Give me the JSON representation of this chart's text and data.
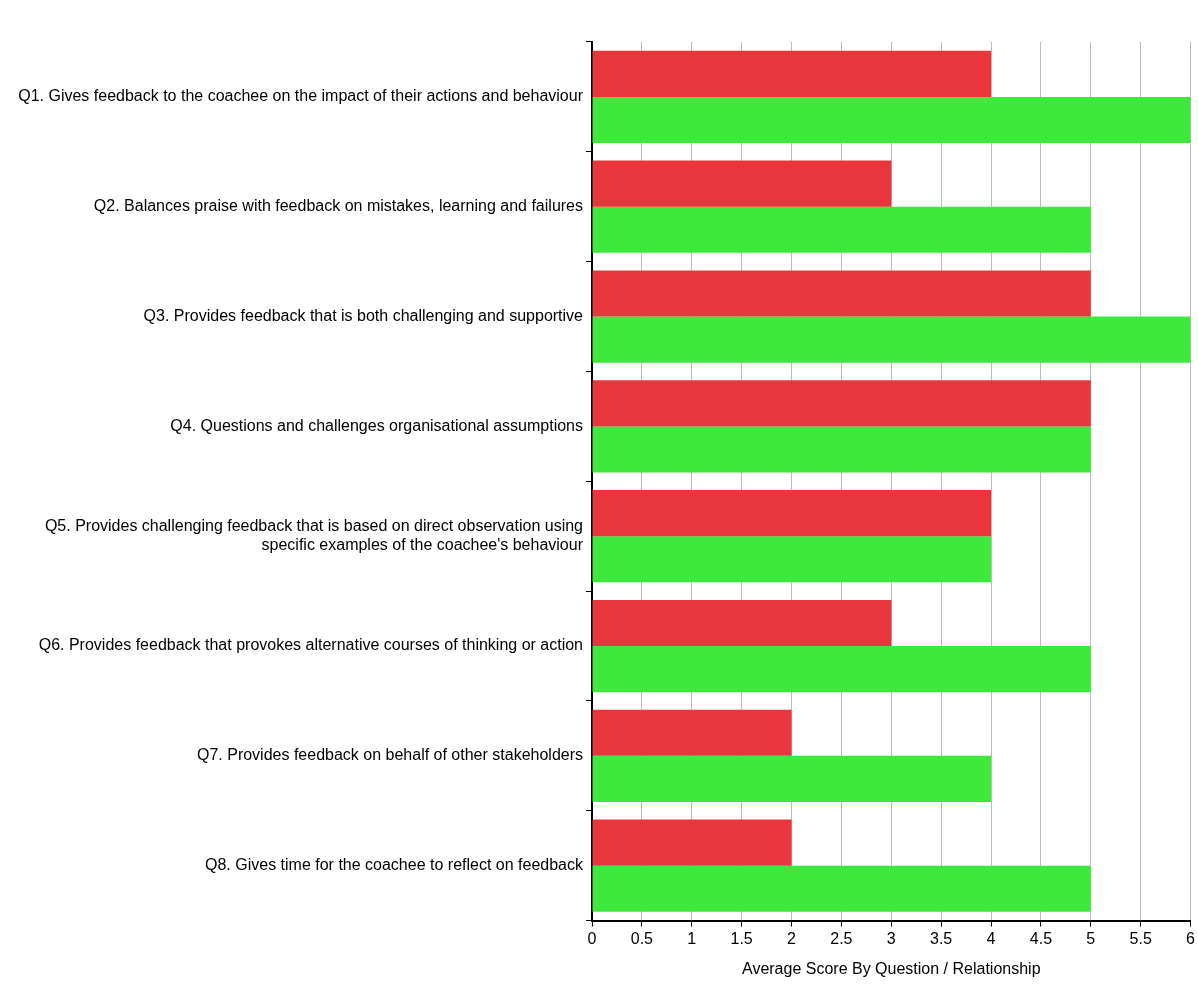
{
  "chart_data": {
    "type": "bar",
    "orientation": "horizontal",
    "xlabel": "Average Score By Question / Relationship",
    "categories": [
      "Q1. Gives feedback to the coachee on the impact of their actions and behaviour",
      "Q2. Balances praise with feedback on mistakes, learning and failures",
      "Q3. Provides feedback that is both challenging and supportive",
      "Q4. Questions and challenges organisational assumptions",
      "Q5. Provides challenging feedback that is based on direct observation using specific examples of the coachee's behaviour",
      "Q6. Provides feedback that provokes alternative courses of thinking or action",
      "Q7. Provides feedback on behalf of other stakeholders",
      "Q8. Gives time for the coachee to reflect on feedback"
    ],
    "series": [
      {
        "color": "#e8363c",
        "values": [
          4,
          3,
          5,
          5,
          4,
          3,
          2,
          2
        ]
      },
      {
        "color": "#3ee83c",
        "values": [
          6,
          5,
          6,
          5,
          4,
          5,
          4,
          5
        ]
      }
    ],
    "xlim": [
      0,
      6
    ],
    "xticks": [
      0,
      0.5,
      1,
      1.5,
      2,
      2.5,
      3,
      3.5,
      4,
      4.5,
      5,
      5.5,
      6
    ],
    "grid": "x",
    "legend": false
  }
}
